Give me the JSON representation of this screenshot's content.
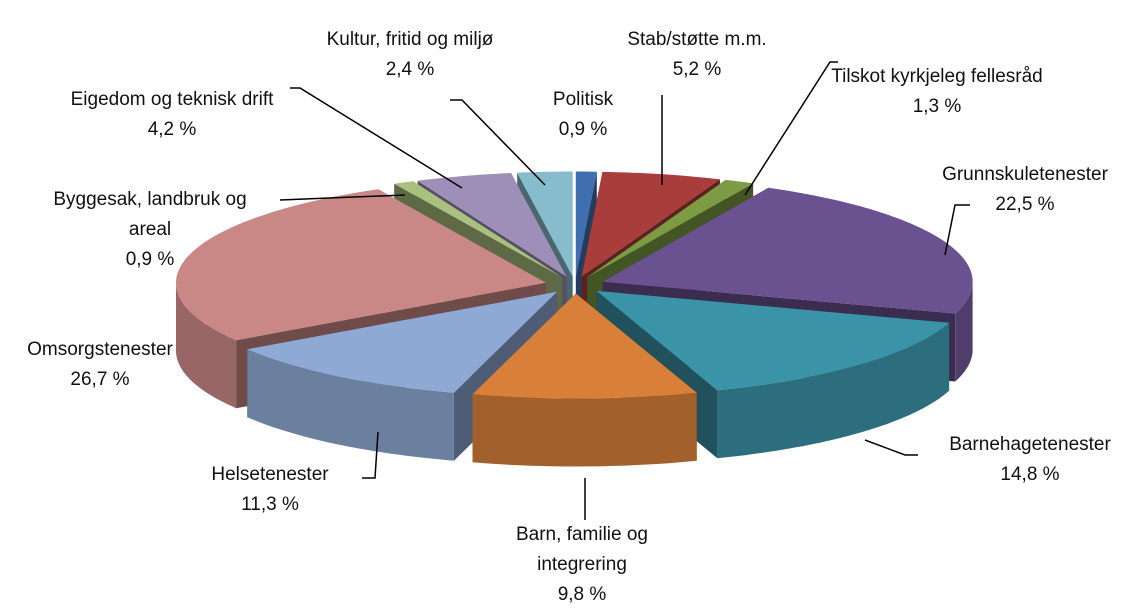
{
  "chart_data": {
    "type": "pie",
    "categories": [
      "Politisk",
      "Stab/støtte m.m.",
      "Tilskot kyrkjeleg fellesråd",
      "Grunnskuletenester",
      "Barnehagetenester",
      "Barn, familie og integrering",
      "Helsetenester",
      "Omsorgstenester",
      "Byggesak, landbruk og areal",
      "Eigedom og teknisk drift",
      "Kultur, fritid og miljø"
    ],
    "values": [
      0.9,
      5.2,
      1.3,
      22.5,
      14.8,
      9.8,
      11.3,
      26.7,
      0.9,
      4.2,
      2.4
    ],
    "value_labels": [
      "0,9 %",
      "5,2 %",
      "1,3 %",
      "22,5 %",
      "14,8 %",
      "9,8 %",
      "11,3 %",
      "26,7 %",
      "0,9 %",
      "4,2 %",
      "2,4 %"
    ],
    "colors": [
      "#3f6fb0",
      "#a83d3b",
      "#7c9b43",
      "#6a5190",
      "#3b93a8",
      "#d8803a",
      "#8ea9d4",
      "#c98886",
      "#a9c07e",
      "#9e8fb8",
      "#86bccb"
    ]
  }
}
